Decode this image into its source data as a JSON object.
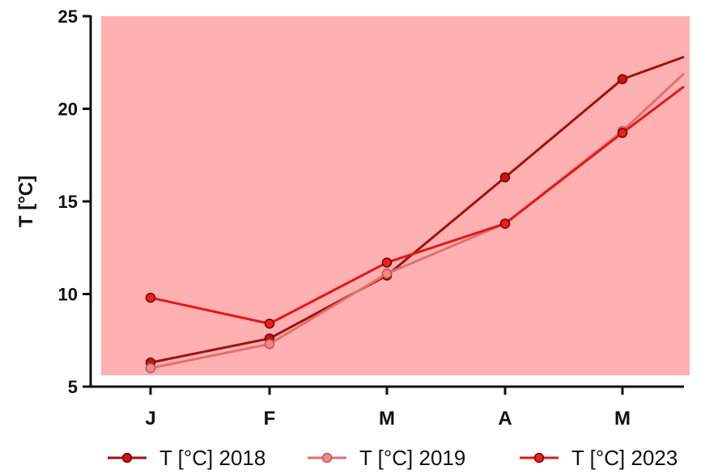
{
  "chart_data": {
    "type": "line",
    "title": "",
    "xlabel": "",
    "ylabel": "T [°C]",
    "categories": [
      "J",
      "F",
      "M",
      "A",
      "M"
    ],
    "ylim": [
      5,
      25
    ],
    "yticks": [
      5,
      10,
      15,
      20,
      25
    ],
    "grid": false,
    "plot_background": "#ffb0b0",
    "legend_position": "bottom",
    "series": [
      {
        "name": "T [°C] 2018",
        "color": "#a01010",
        "marker_fill": "#c01818",
        "values": [
          6.3,
          7.6,
          11.0,
          16.3,
          21.6
        ],
        "trailing_value": 22.8
      },
      {
        "name": "T [°C] 2019",
        "color": "#e07070",
        "marker_fill": "#f08a8a",
        "values": [
          6.0,
          7.3,
          11.1,
          13.8,
          18.8
        ],
        "trailing_value": 21.9
      },
      {
        "name": "T [°C] 2023",
        "color": "#e01818",
        "marker_fill": "#e82020",
        "values": [
          9.8,
          8.4,
          11.7,
          13.8,
          18.7
        ],
        "trailing_value": 21.2
      }
    ]
  }
}
